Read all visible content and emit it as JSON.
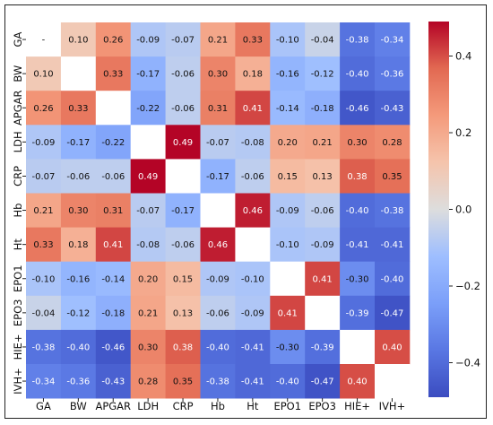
{
  "chart_data": {
    "type": "heatmap",
    "title": "",
    "xlabel": "",
    "ylabel": "",
    "x_labels": [
      "GA",
      "BW",
      "APGAR",
      "LDH",
      "CRP",
      "Hb",
      "Ht",
      "EPO1",
      "EPO3",
      "HIE+",
      "IVH+"
    ],
    "y_labels": [
      "GA",
      "BW",
      "APGAR",
      "LDH",
      "CRP",
      "Hb",
      "Ht",
      "EPO1",
      "EPO3",
      "HIE+",
      "IVH+"
    ],
    "values": [
      [
        null,
        0.1,
        0.26,
        -0.09,
        -0.07,
        0.21,
        0.33,
        -0.1,
        -0.04,
        -0.38,
        -0.34
      ],
      [
        0.1,
        null,
        0.33,
        -0.17,
        -0.06,
        0.3,
        0.18,
        -0.16,
        -0.12,
        -0.4,
        -0.36
      ],
      [
        0.26,
        0.33,
        null,
        -0.22,
        -0.06,
        0.31,
        0.41,
        -0.14,
        -0.18,
        -0.46,
        -0.43
      ],
      [
        -0.09,
        -0.17,
        -0.22,
        null,
        0.49,
        -0.07,
        -0.08,
        0.2,
        0.21,
        0.3,
        0.28
      ],
      [
        -0.07,
        -0.06,
        -0.06,
        0.49,
        null,
        -0.17,
        -0.06,
        0.15,
        0.13,
        0.38,
        0.35
      ],
      [
        0.21,
        0.3,
        0.31,
        -0.07,
        -0.17,
        null,
        0.46,
        -0.09,
        -0.06,
        -0.4,
        -0.38
      ],
      [
        0.33,
        0.18,
        0.41,
        -0.08,
        -0.06,
        0.46,
        null,
        -0.1,
        -0.09,
        -0.41,
        -0.41
      ],
      [
        -0.1,
        -0.16,
        -0.14,
        0.2,
        0.15,
        -0.09,
        -0.1,
        null,
        0.41,
        -0.3,
        -0.4
      ],
      [
        -0.04,
        -0.12,
        -0.18,
        0.21,
        0.13,
        -0.06,
        -0.09,
        0.41,
        null,
        -0.39,
        -0.47
      ],
      [
        -0.38,
        -0.4,
        -0.46,
        0.3,
        0.38,
        -0.4,
        -0.41,
        -0.3,
        -0.39,
        null,
        0.4
      ],
      [
        -0.34,
        -0.36,
        -0.43,
        0.28,
        0.35,
        -0.38,
        -0.41,
        -0.4,
        -0.47,
        0.4,
        null
      ]
    ],
    "labels": [
      [
        "-",
        "0.10",
        "0.26",
        "-0.09",
        "-0.07",
        "0.21",
        "0.33",
        "-0.10",
        "-0.04",
        "-0.38",
        "-0.34"
      ],
      [
        "0.10",
        "",
        "0.33",
        "-0.17",
        "-0.06",
        "0.30",
        "0.18",
        "-0.16",
        "-0.12",
        "-0.40",
        "-0.36"
      ],
      [
        "0.26",
        "0.33",
        "",
        "-0.22",
        "-0.06",
        "0.31",
        "0.41",
        "-0.14",
        "-0.18",
        "-0.46",
        "-0.43"
      ],
      [
        "-0.09",
        "-0.17",
        "-0.22",
        "",
        "0.49",
        "-0.07",
        "-0.08",
        "0.20",
        "0.21",
        "0.30",
        "0.28"
      ],
      [
        "-0.07",
        "-0.06",
        "-0.06",
        "0.49",
        "",
        "-0.17",
        "-0.06",
        "0.15",
        "0.13",
        "0.38",
        "0.35"
      ],
      [
        "0.21",
        "0.30",
        "0.31",
        "-0.07",
        "-0.17",
        "",
        "0.46",
        "-0.09",
        "-0.06",
        "-0.40",
        "-0.38"
      ],
      [
        "0.33",
        "0.18",
        "0.41",
        "-0.08",
        "-0.06",
        "0.46",
        "",
        "-0.10",
        "-0.09",
        "-0.41",
        "-0.41"
      ],
      [
        "-0.10",
        "-0.16",
        "-0.14",
        "0.20",
        "0.15",
        "-0.09",
        "-0.10",
        "",
        "0.41",
        "-0.30",
        "-0.40"
      ],
      [
        "-0.04",
        "-0.12",
        "-0.18",
        "0.21",
        "0.13",
        "-0.06",
        "-0.09",
        "0.41",
        "",
        "-0.39",
        "-0.47"
      ],
      [
        "-0.38",
        "-0.40",
        "-0.46",
        "0.30",
        "0.38",
        "-0.40",
        "-0.41",
        "-0.30",
        "-0.39",
        "",
        "0.40"
      ],
      [
        "-0.34",
        "-0.36",
        "-0.43",
        "0.28",
        "0.35",
        "-0.38",
        "-0.41",
        "-0.40",
        "-0.47",
        "0.40",
        ""
      ]
    ],
    "colormap": "coolwarm",
    "vmin": -0.49,
    "vmax": 0.49,
    "colorbar": {
      "ticks": [
        0.4,
        0.2,
        0.0,
        -0.2,
        -0.4
      ],
      "tick_labels": [
        "0.4",
        "0.2",
        "0.0",
        "−0.2",
        "−0.4"
      ],
      "placement": "right"
    },
    "colors": {
      "low": "#3b4cc0",
      "mid": "#dddddd",
      "high": "#b40426"
    }
  }
}
